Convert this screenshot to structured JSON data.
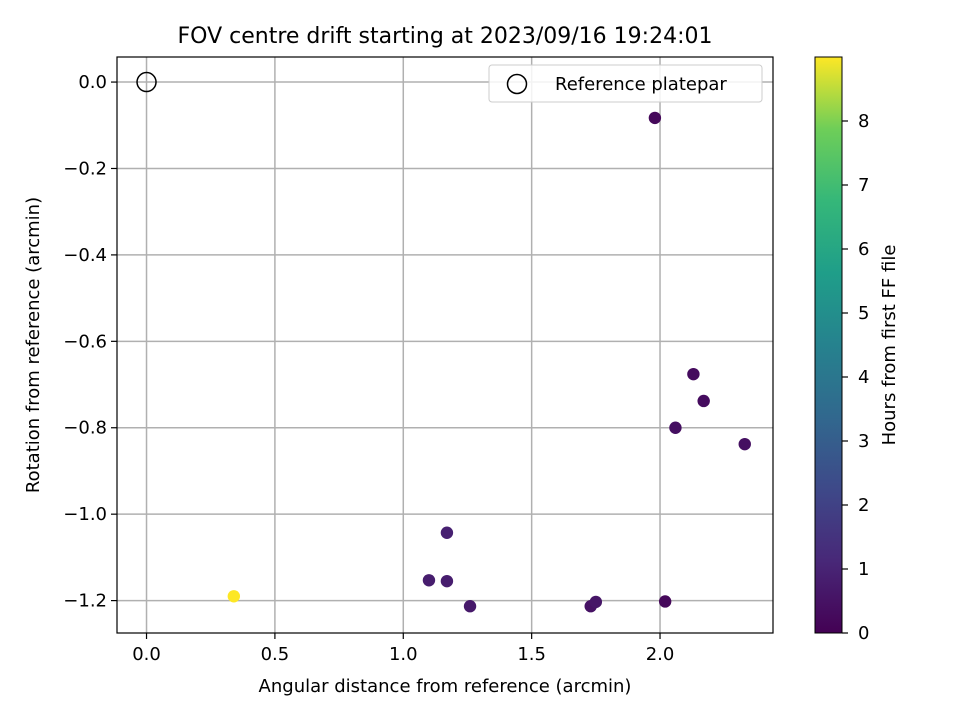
{
  "chart_data": {
    "type": "scatter",
    "title": "FOV centre drift starting at 2023/09/16 19:24:01",
    "xlabel": "Angular distance from reference (arcmin)",
    "ylabel": "Rotation from reference (arcmin)",
    "xlim": [
      -0.115,
      2.44
    ],
    "ylim": [
      -1.275,
      0.058
    ],
    "xticks": [
      0.0,
      0.5,
      1.0,
      1.5,
      2.0
    ],
    "xtick_labels": [
      "0.0",
      "0.5",
      "1.0",
      "1.5",
      "2.0"
    ],
    "yticks": [
      0.0,
      -0.2,
      -0.4,
      -0.6,
      -0.8,
      -1.0,
      -1.2
    ],
    "ytick_labels": [
      "0.0",
      "−0.2",
      "−0.4",
      "−0.6",
      "−0.8",
      "−1.0",
      "−1.2"
    ],
    "grid": true,
    "legend": {
      "position": "upper-right",
      "entries": [
        "Reference platepar"
      ]
    },
    "reference_point": {
      "x": 0.0,
      "y": 0.0
    },
    "colorbar": {
      "label": "Hours from first FF file",
      "colormap": "viridis",
      "range": [
        0,
        9
      ],
      "ticks": [
        0,
        1,
        2,
        3,
        4,
        5,
        6,
        7,
        8
      ],
      "tick_labels": [
        "0",
        "1",
        "2",
        "3",
        "4",
        "5",
        "6",
        "7",
        "8"
      ]
    },
    "points": [
      {
        "x": 1.98,
        "y": -0.083,
        "hours": 0.2
      },
      {
        "x": 2.13,
        "y": -0.676,
        "hours": 0.3
      },
      {
        "x": 2.17,
        "y": -0.738,
        "hours": 0.3
      },
      {
        "x": 2.06,
        "y": -0.8,
        "hours": 0.4
      },
      {
        "x": 2.33,
        "y": -0.838,
        "hours": 0.4
      },
      {
        "x": 1.17,
        "y": -1.043,
        "hours": 0.9
      },
      {
        "x": 1.1,
        "y": -1.153,
        "hours": 0.8
      },
      {
        "x": 1.17,
        "y": -1.155,
        "hours": 0.8
      },
      {
        "x": 1.26,
        "y": -1.213,
        "hours": 0.7
      },
      {
        "x": 1.73,
        "y": -1.213,
        "hours": 0.5
      },
      {
        "x": 1.75,
        "y": -1.203,
        "hours": 0.6
      },
      {
        "x": 2.02,
        "y": -1.202,
        "hours": 0.2
      },
      {
        "x": 0.34,
        "y": -1.19,
        "hours": 9.0
      }
    ]
  }
}
